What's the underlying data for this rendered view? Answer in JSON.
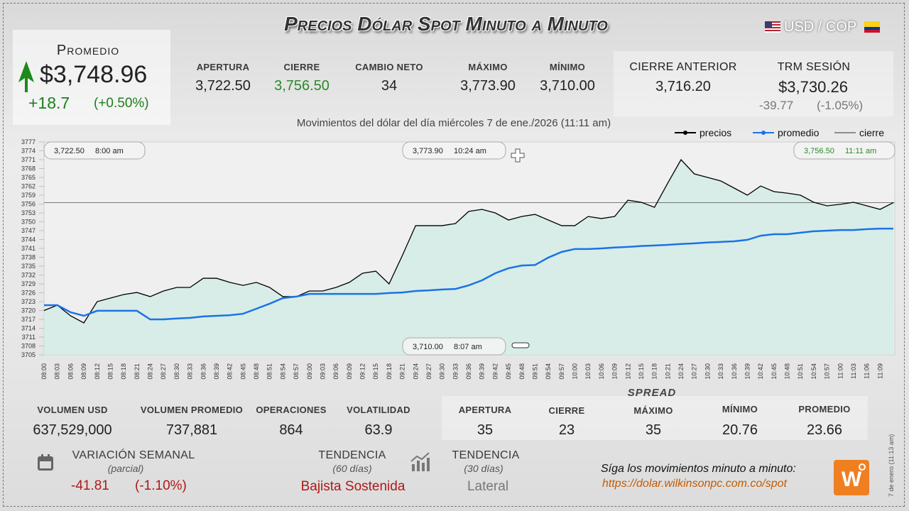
{
  "header": {
    "title": "Precios Dólar Spot Minuto a Minuto",
    "pair": "USD / COP"
  },
  "promedio": {
    "label": "Promedio",
    "value": "$3,748.96",
    "change": "+18.7",
    "pct": "(+0.50%)"
  },
  "top_stats": [
    {
      "label": "APERTURA",
      "value": "3,722.50"
    },
    {
      "label": "CIERRE",
      "value": "3,756.50"
    },
    {
      "label": "CAMBIO NETO",
      "value": "34"
    },
    {
      "label": "MÁXIMO",
      "value": "3,773.90"
    },
    {
      "label": "MÍNIMO",
      "value": "3,710.00"
    }
  ],
  "cierre_anterior": {
    "label": "CIERRE ANTERIOR",
    "value": "3,716.20"
  },
  "trm": {
    "label": "TRM SESIÓN",
    "value": "$3,730.26",
    "change": "-39.77",
    "pct": "(-1.05%)"
  },
  "bottom_stats": [
    {
      "label": "VOLUMEN USD",
      "value": "637,529,000"
    },
    {
      "label": "VOLUMEN PROMEDIO",
      "value": "737,881"
    },
    {
      "label": "OPERACIONES",
      "value": "864"
    },
    {
      "label": "VOLATILIDAD",
      "value": "63.9"
    }
  ],
  "spread": {
    "title": "SPREAD",
    "items": [
      {
        "label": "APERTURA",
        "value": "35"
      },
      {
        "label": "CIERRE",
        "value": "23"
      },
      {
        "label": "MÁXIMO",
        "value": "35"
      },
      {
        "label": "MÍNIMO",
        "value": "20.76"
      },
      {
        "label": "PROMEDIO",
        "value": "23.66"
      }
    ]
  },
  "variacion": {
    "label": "VARIACIÓN SEMANAL",
    "sub": "(parcial)",
    "value": "-41.81",
    "pct": "(-1.10%)"
  },
  "tendencia_60": {
    "label": "TENDENCIA",
    "sub": "(60 días)",
    "value": "Bajista Sostenida"
  },
  "tendencia_30": {
    "label": "TENDENCIA",
    "sub": "(30 días)",
    "value": "Lateral"
  },
  "footer": {
    "text": "Síga los movimientos minuto a minuto:",
    "url": "https://dolar.wilkinsonpc.com.co/spot",
    "stamp": "7 de enero (11:13 am)"
  },
  "chart_data": {
    "type": "line",
    "subtitle": "Movimientos del dólar del día miércoles 7 de ene./2026 (11:11 am)",
    "categories": [
      "08:00",
      "08:03",
      "08:06",
      "08:09",
      "08:12",
      "08:15",
      "08:18",
      "08:21",
      "08:24",
      "08:27",
      "08:30",
      "08:33",
      "08:36",
      "08:39",
      "08:42",
      "08:45",
      "08:48",
      "08:51",
      "08:54",
      "08:57",
      "09:00",
      "09:03",
      "09:06",
      "09:09",
      "09:12",
      "09:15",
      "09:18",
      "09:21",
      "09:24",
      "09:27",
      "09:30",
      "09:33",
      "09:36",
      "09:39",
      "09:42",
      "09:45",
      "09:48",
      "09:51",
      "09:54",
      "09:57",
      "10:00",
      "10:03",
      "10:06",
      "10:09",
      "10:12",
      "10:15",
      "10:18",
      "10:21",
      "10:24",
      "10:27",
      "10:30",
      "10:33",
      "10:36",
      "10:39",
      "10:42",
      "10:45",
      "10:48",
      "10:51",
      "10:54",
      "10:57",
      "11:00",
      "11:03",
      "11:06",
      "11:09",
      null
    ],
    "series": [
      {
        "name": "precios",
        "color": "#000000",
        "values": [
          3720,
          3721.8,
          3718.2,
          3715.8,
          3723,
          3724.2,
          3725.4,
          3726.1,
          3724.7,
          3726.6,
          3727.8,
          3727.8,
          3730.9,
          3730.9,
          3729.5,
          3728.5,
          3729.5,
          3727.8,
          3724.7,
          3724.7,
          3726.6,
          3726.6,
          3727.8,
          3729.5,
          3732.6,
          3733.3,
          3729,
          3738.6,
          3748.7,
          3748.7,
          3748.7,
          3749.4,
          3753.5,
          3754.2,
          3753,
          3750.6,
          3751.8,
          3752.5,
          3750.6,
          3748.7,
          3748.7,
          3751.8,
          3751.1,
          3751.8,
          3757.3,
          3756.6,
          3754.9,
          3763.1,
          3771,
          3766.2,
          3765,
          3763.8,
          3761.4,
          3759,
          3762.1,
          3760.2,
          3759.7,
          3759,
          3756.6,
          3755.4,
          3755.9,
          3756.6,
          3755.4,
          3754.2,
          3756.5
        ]
      },
      {
        "name": "promedio",
        "color": "#1a73e8",
        "values": [
          3721.8,
          3721.8,
          3719.4,
          3718.2,
          3719.9,
          3719.9,
          3719.9,
          3719.9,
          3717,
          3717,
          3717.3,
          3717.5,
          3718,
          3718.2,
          3718.4,
          3718.9,
          3720.6,
          3722.3,
          3724.2,
          3724.7,
          3725.6,
          3725.6,
          3725.6,
          3725.6,
          3725.6,
          3725.6,
          3725.9,
          3726.1,
          3726.6,
          3726.8,
          3727.1,
          3727.3,
          3728.5,
          3730.2,
          3732.6,
          3734.3,
          3735.2,
          3735.4,
          3737.9,
          3739.8,
          3740.8,
          3740.8,
          3741,
          3741.3,
          3741.5,
          3741.8,
          3742,
          3742.2,
          3742.5,
          3742.7,
          3743,
          3743.2,
          3743.4,
          3743.9,
          3745.3,
          3745.8,
          3745.8,
          3746.3,
          3746.8,
          3747,
          3747.2,
          3747.2,
          3747.5,
          3747.7,
          3747.7
        ]
      }
    ],
    "reference_line": {
      "name": "cierre",
      "value": 3756.5,
      "color": "#333333"
    },
    "ylim": [
      3705,
      3777
    ],
    "yticks": [
      3705,
      3708,
      3711,
      3714,
      3717,
      3720,
      3723,
      3726,
      3729,
      3732,
      3735,
      3738,
      3741,
      3744,
      3747,
      3750,
      3753,
      3756,
      3759,
      3762,
      3765,
      3768,
      3771,
      3774,
      3777
    ],
    "fill_color": "#d4ece5",
    "annotations": [
      {
        "value": "3,722.50",
        "time": "8:00 am"
      },
      {
        "value": "3,773.90",
        "time": "10:24 am"
      },
      {
        "value": "3,756.50",
        "time": "11:11 am"
      },
      {
        "value": "3,710.00",
        "time": "8:07 am"
      }
    ]
  }
}
